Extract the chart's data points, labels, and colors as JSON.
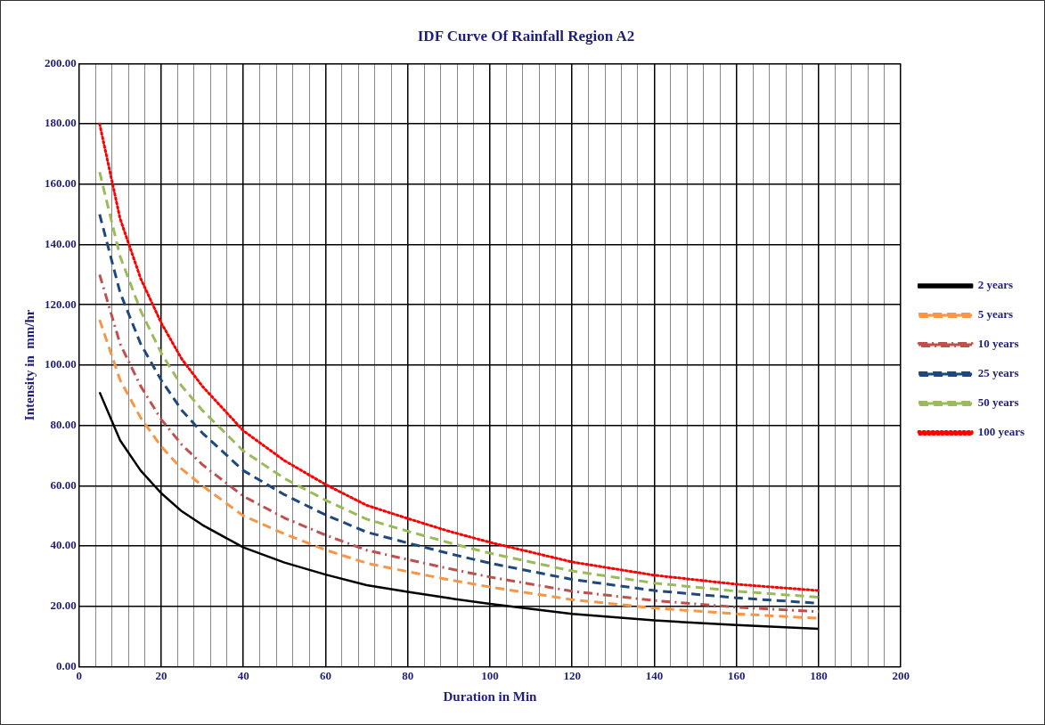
{
  "chart_data": {
    "type": "line",
    "title": "IDF Curve Of Rainfall Region A2",
    "xlabel": "Duration in Min",
    "ylabel": "Intensity in  mm/hr",
    "x": [
      5,
      10,
      15,
      20,
      25,
      30,
      40,
      50,
      60,
      70,
      80,
      90,
      100,
      120,
      140,
      160,
      180
    ],
    "series": [
      {
        "name": "2 years",
        "color": "#000000",
        "line_style": "solid",
        "values": [
          91,
          75,
          65,
          57.5,
          51.5,
          47,
          39.5,
          34.5,
          30.5,
          27,
          24.8,
          22.7,
          20.8,
          17.5,
          15.3,
          13.8,
          12.5
        ]
      },
      {
        "name": "5 years",
        "color": "#f79646",
        "line_style": "dashed",
        "values": [
          115,
          95,
          82.5,
          73,
          65.5,
          60,
          50,
          44,
          38.7,
          34.3,
          31.5,
          28.8,
          26.4,
          22.2,
          19.4,
          17.5,
          16
        ]
      },
      {
        "name": "10 years",
        "color": "#c0504d",
        "line_style": "dashdot",
        "values": [
          130,
          107,
          93,
          82,
          73.6,
          67,
          56.5,
          49.3,
          43.6,
          38.6,
          35.5,
          32.5,
          29.7,
          25,
          21.9,
          19.7,
          18.2
        ]
      },
      {
        "name": "25 years",
        "color": "#1f497d",
        "line_style": "dashed",
        "values": [
          150,
          124,
          107,
          95,
          85,
          77.5,
          65,
          57,
          50.3,
          44.6,
          41,
          37.5,
          34.3,
          28.9,
          25.2,
          22.8,
          21
        ]
      },
      {
        "name": "50 years",
        "color": "#9bbb59",
        "line_style": "dashed",
        "values": [
          164,
          136,
          118,
          104,
          93,
          85,
          71.5,
          62.4,
          55.2,
          48.9,
          44.9,
          41.1,
          37.6,
          31.7,
          27.7,
          25,
          23
        ]
      },
      {
        "name": "100 years",
        "color": "#ff0000",
        "line_style": "dotted",
        "values": [
          180,
          148.5,
          128.7,
          114,
          102,
          93,
          78.2,
          68.3,
          60.4,
          53.5,
          49.1,
          44.9,
          41.2,
          34.7,
          30.3,
          27.3,
          25.2
        ]
      }
    ],
    "xlim": [
      0,
      200
    ],
    "xticks": [
      0,
      {
        "value": 4,
        "label": null
      },
      {
        "value": 8,
        "label": null
      },
      {
        "value": 12,
        "label": null
      },
      {
        "value": 16,
        "label": null
      },
      20,
      {
        "value": 24,
        "label": null
      },
      {
        "value": 28,
        "label": null
      },
      {
        "value": 32,
        "label": null
      },
      {
        "value": 36,
        "label": null
      },
      40,
      {
        "value": 44,
        "label": null
      },
      {
        "value": 48,
        "label": null
      },
      {
        "value": 52,
        "label": null
      },
      {
        "value": 56,
        "label": null
      },
      60,
      {
        "value": 64,
        "label": null
      },
      {
        "value": 68,
        "label": null
      },
      {
        "value": 72,
        "label": null
      },
      {
        "value": 76,
        "label": null
      },
      80,
      {
        "value": 84,
        "label": null
      },
      {
        "value": 88,
        "label": null
      },
      {
        "value": 92,
        "label": null
      },
      {
        "value": 96,
        "label": null
      },
      100,
      {
        "value": 104,
        "label": null
      },
      {
        "value": 108,
        "label": null
      },
      {
        "value": 112,
        "label": null
      },
      {
        "value": 116,
        "label": null
      },
      120,
      {
        "value": 124,
        "label": null
      },
      {
        "value": 128,
        "label": null
      },
      {
        "value": 132,
        "label": null
      },
      {
        "value": 136,
        "label": null
      },
      140,
      {
        "value": 144,
        "label": null
      },
      {
        "value": 148,
        "label": null
      },
      {
        "value": 152,
        "label": null
      },
      {
        "value": 156,
        "label": null
      },
      160,
      {
        "value": 164,
        "label": null
      },
      {
        "value": 168,
        "label": null
      },
      {
        "value": 172,
        "label": null
      },
      {
        "value": 176,
        "label": null
      },
      180,
      {
        "value": 184,
        "label": null
      },
      {
        "value": 188,
        "label": null
      },
      {
        "value": 192,
        "label": null
      },
      {
        "value": 196,
        "label": null
      },
      200
    ],
    "ylim": [
      0,
      200
    ],
    "yticks": [
      {
        "value": 0,
        "label": "0.00"
      },
      {
        "value": 20,
        "label": "20.00"
      },
      {
        "value": 40,
        "label": "40.00"
      },
      {
        "value": 60,
        "label": "60.00"
      },
      {
        "value": 80,
        "label": "80.00"
      },
      {
        "value": 100,
        "label": "100.00"
      },
      {
        "value": 120,
        "label": "120.00"
      },
      {
        "value": 140,
        "label": "140.00"
      },
      {
        "value": 160,
        "label": "160.00"
      },
      {
        "value": 180,
        "label": "180.00"
      },
      {
        "value": 200,
        "label": "200.00"
      }
    ],
    "grid": true,
    "legend": "right",
    "marker": "none"
  }
}
